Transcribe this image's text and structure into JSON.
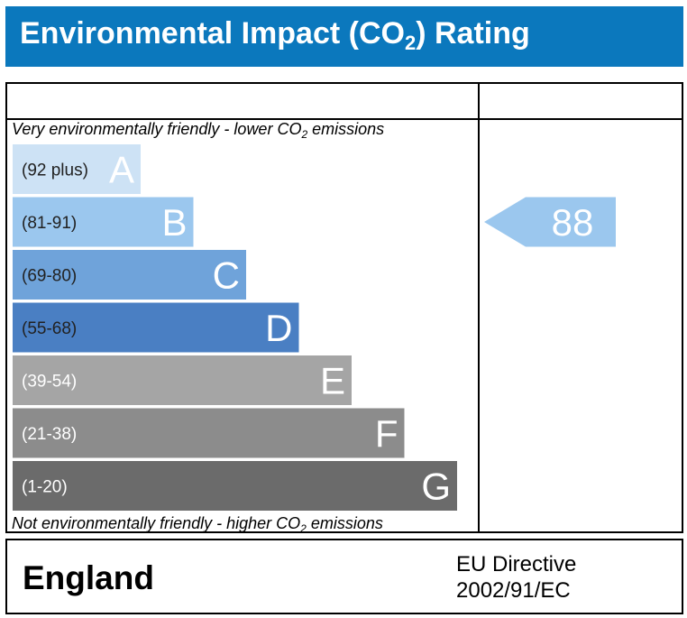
{
  "header": {
    "title_prefix": "Environmental Impact (CO",
    "title_sub": "2",
    "title_suffix": ") Rating",
    "background_color": "#0b78bd"
  },
  "notes": {
    "top_prefix": "Very environmentally friendly - lower CO",
    "top_sub": "2",
    "top_suffix": " emissions",
    "bottom_prefix": "Not environmentally friendly - higher CO",
    "bottom_sub": "2",
    "bottom_suffix": " emissions"
  },
  "footer": {
    "country": "England",
    "directive_line1": "EU Directive",
    "directive_line2": "2002/91/EC"
  },
  "chart_data": {
    "type": "bar",
    "categories": [
      "A",
      "B",
      "C",
      "D",
      "E",
      "F",
      "G"
    ],
    "bands": [
      {
        "letter": "A",
        "range": "(92 plus)",
        "color": "#cde2f5"
      },
      {
        "letter": "B",
        "range": "(81-91)",
        "color": "#9bc7ee"
      },
      {
        "letter": "C",
        "range": "(69-80)",
        "color": "#6fa3da"
      },
      {
        "letter": "D",
        "range": "(55-68)",
        "color": "#4a7fc3"
      },
      {
        "letter": "E",
        "range": "(39-54)",
        "color": "#a5a5a5"
      },
      {
        "letter": "F",
        "range": "(21-38)",
        "color": "#8c8c8c"
      },
      {
        "letter": "G",
        "range": "(1-20)",
        "color": "#6b6b6b"
      }
    ],
    "current": {
      "value": 88,
      "band": "B",
      "color": "#9bc7ee"
    }
  }
}
